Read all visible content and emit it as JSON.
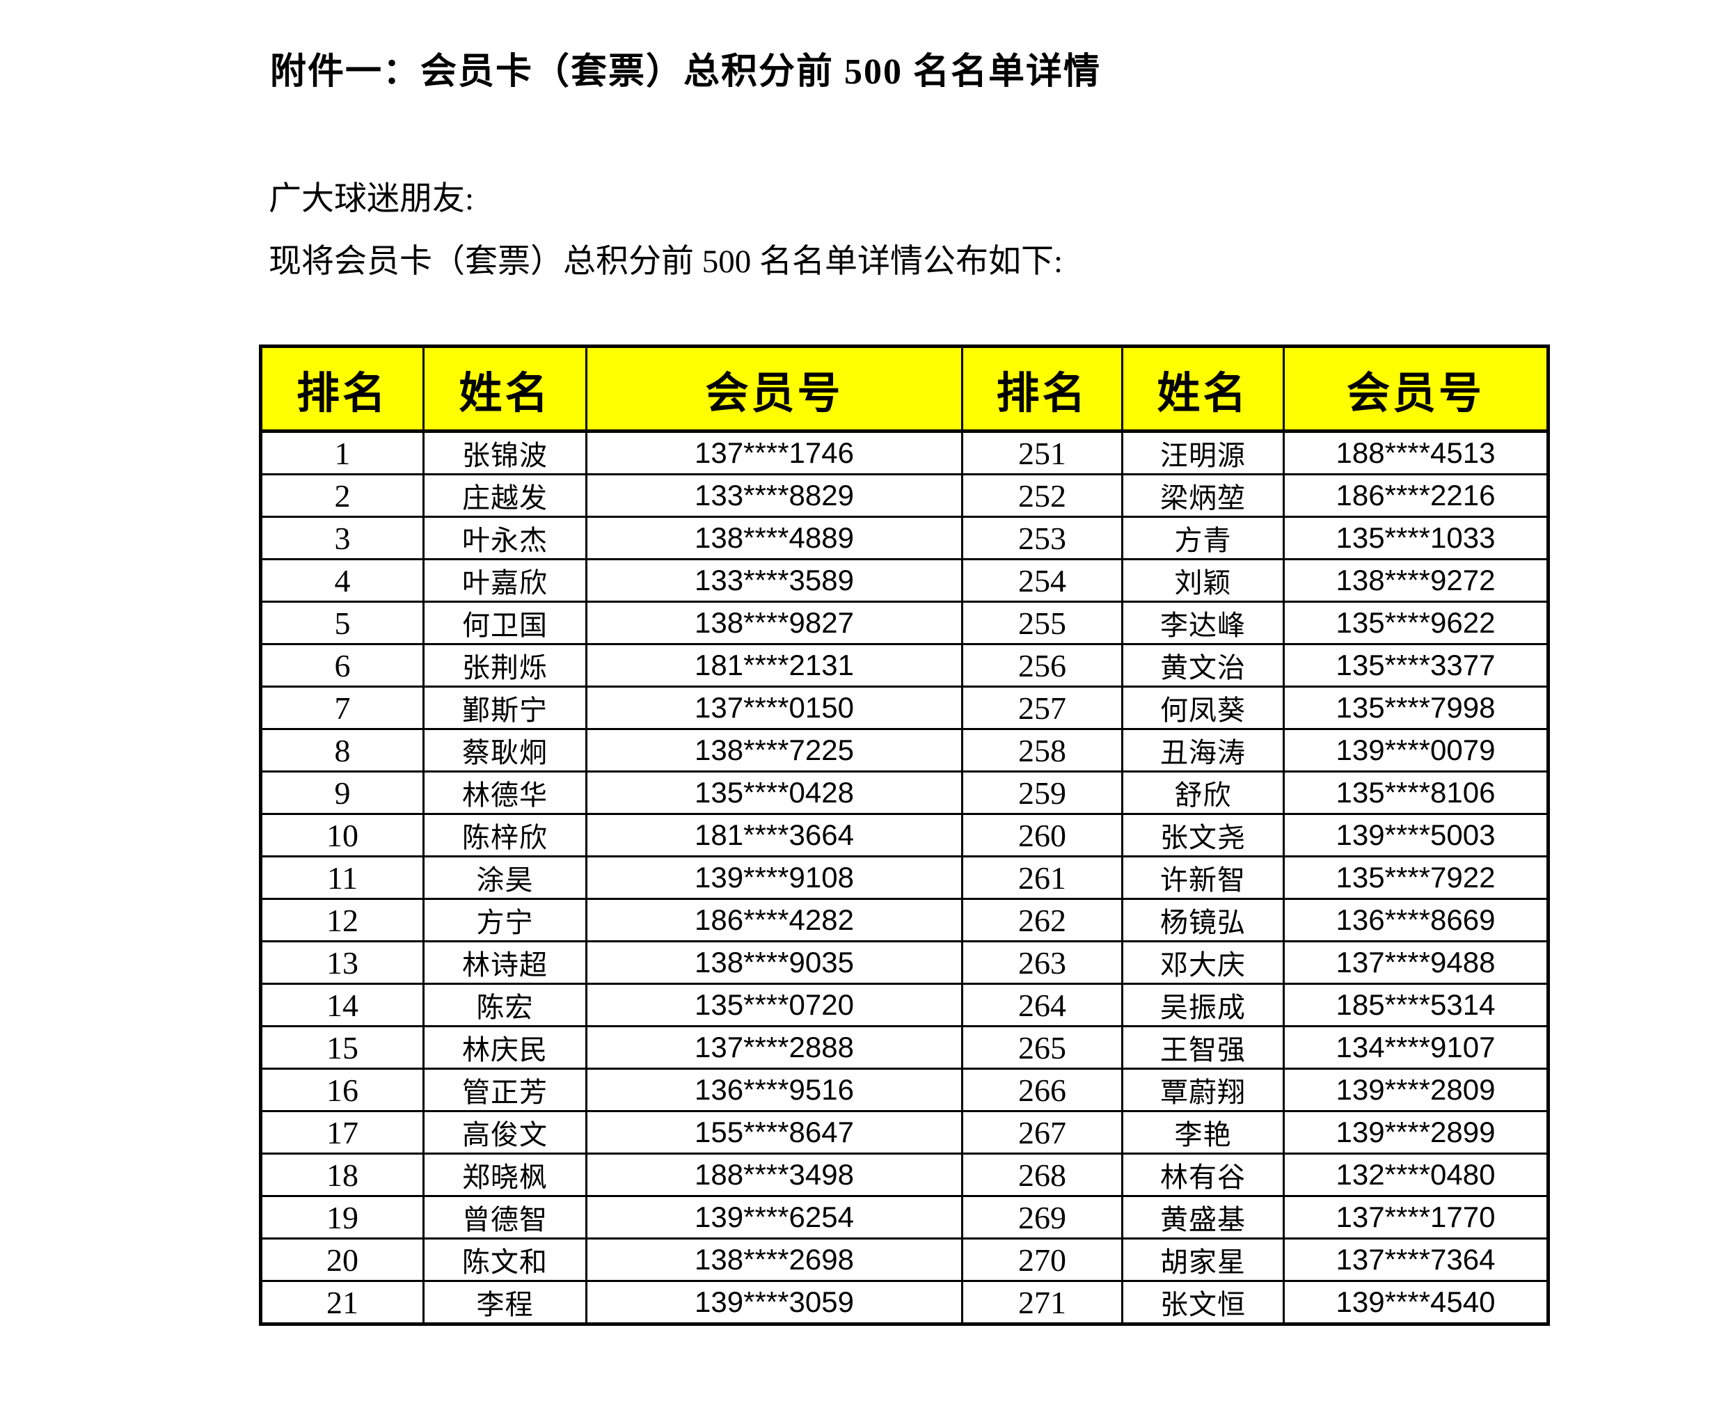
{
  "page": {
    "title": "附件一：会员卡（套票）总积分前 500 名名单详情",
    "greeting": "广大球迷朋友:",
    "intro": "现将会员卡（套票）总积分前 500 名名单详情公布如下:"
  },
  "table": {
    "header_bg": "#FFFF00",
    "border_color": "#000000",
    "columns": [
      "排名",
      "姓名",
      "会员号",
      "排名",
      "姓名",
      "会员号"
    ],
    "rows": [
      [
        "1",
        "张锦波",
        "137****1746",
        "251",
        "汪明源",
        "188****4513"
      ],
      [
        "2",
        "庄越发",
        "133****8829",
        "252",
        "梁炳堃",
        "186****2216"
      ],
      [
        "3",
        "叶永杰",
        "138****4889",
        "253",
        "方青",
        "135****1033"
      ],
      [
        "4",
        "叶嘉欣",
        "133****3589",
        "254",
        "刘颖",
        "138****9272"
      ],
      [
        "5",
        "何卫国",
        "138****9827",
        "255",
        "李达峰",
        "135****9622"
      ],
      [
        "6",
        "张荆烁",
        "181****2131",
        "256",
        "黄文治",
        "135****3377"
      ],
      [
        "7",
        "鄞斯宁",
        "137****0150",
        "257",
        "何凤葵",
        "135****7998"
      ],
      [
        "8",
        "蔡耿炯",
        "138****7225",
        "258",
        "丑海涛",
        "139****0079"
      ],
      [
        "9",
        "林德华",
        "135****0428",
        "259",
        "舒欣",
        "135****8106"
      ],
      [
        "10",
        "陈梓欣",
        "181****3664",
        "260",
        "张文尧",
        "139****5003"
      ],
      [
        "11",
        "涂昊",
        "139****9108",
        "261",
        "许新智",
        "135****7922"
      ],
      [
        "12",
        "方宁",
        "186****4282",
        "262",
        "杨镜弘",
        "136****8669"
      ],
      [
        "13",
        "林诗超",
        "138****9035",
        "263",
        "邓大庆",
        "137****9488"
      ],
      [
        "14",
        "陈宏",
        "135****0720",
        "264",
        "吴振成",
        "185****5314"
      ],
      [
        "15",
        "林庆民",
        "137****2888",
        "265",
        "王智强",
        "134****9107"
      ],
      [
        "16",
        "管正芳",
        "136****9516",
        "266",
        "覃蔚翔",
        "139****2809"
      ],
      [
        "17",
        "高俊文",
        "155****8647",
        "267",
        "李艳",
        "139****2899"
      ],
      [
        "18",
        "郑晓枫",
        "188****3498",
        "268",
        "林有谷",
        "132****0480"
      ],
      [
        "19",
        "曾德智",
        "139****6254",
        "269",
        "黄盛基",
        "137****1770"
      ],
      [
        "20",
        "陈文和",
        "138****2698",
        "270",
        "胡家星",
        "137****7364"
      ],
      [
        "21",
        "李程",
        "139****3059",
        "271",
        "张文恒",
        "139****4540"
      ]
    ]
  }
}
